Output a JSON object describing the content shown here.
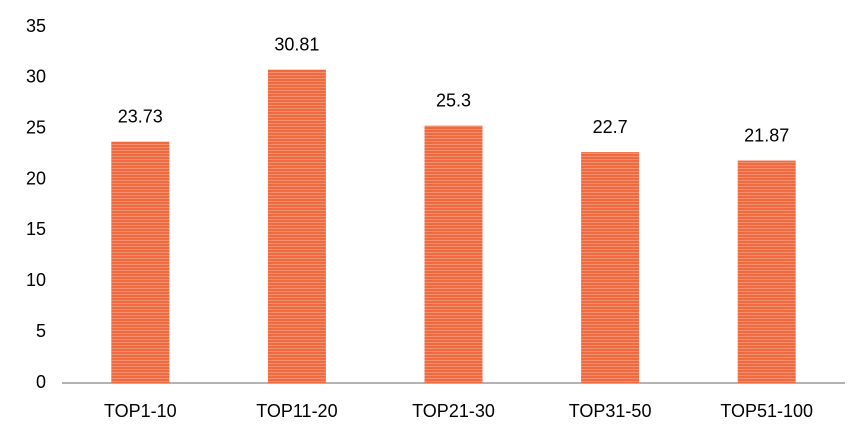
{
  "chart_data": {
    "type": "bar",
    "categories": [
      "TOP1-10",
      "TOP11-20",
      "TOP21-30",
      "TOP31-50",
      "TOP51-100"
    ],
    "values": [
      23.73,
      30.81,
      25.3,
      22.7,
      21.87
    ],
    "color": "#ef6a3f",
    "ylim": [
      0,
      35
    ],
    "yticks": [
      0,
      5,
      10,
      15,
      20,
      25,
      30,
      35
    ],
    "grid": false
  }
}
